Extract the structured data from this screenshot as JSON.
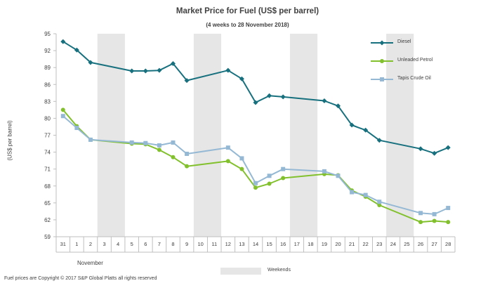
{
  "chart_data": {
    "type": "line",
    "title": "Market Price for Fuel (US$ per barrel)",
    "subtitle": "(4 weeks to 28 November 2018)",
    "ylabel": "(US$ per barrel)",
    "xlabel": "November",
    "ylim": [
      59,
      95
    ],
    "yticks": [
      "95",
      "92",
      "89",
      "86",
      "83",
      "80",
      "77",
      "74",
      "71",
      "68",
      "65",
      "62",
      "59"
    ],
    "categories": [
      "31",
      "1",
      "2",
      "3",
      "4",
      "5",
      "6",
      "7",
      "8",
      "9",
      "10",
      "11",
      "12",
      "13",
      "14",
      "15",
      "16",
      "17",
      "18",
      "19",
      "20",
      "21",
      "22",
      "23",
      "24",
      "25",
      "26",
      "27",
      "28"
    ],
    "weekends": [
      [
        "3",
        "4"
      ],
      [
        "10",
        "11"
      ],
      [
        "17",
        "18"
      ],
      [
        "24",
        "25"
      ]
    ],
    "weekend_label": "Weekends",
    "legend_position": "top-right",
    "grid": false,
    "series": [
      {
        "name": "Diesel",
        "color": "#17707e",
        "marker": "diamond",
        "points": [
          [
            "31",
            93.6
          ],
          [
            "1",
            92.1
          ],
          [
            "2",
            89.9
          ],
          [
            "5",
            88.4
          ],
          [
            "6",
            88.4
          ],
          [
            "7",
            88.5
          ],
          [
            "8",
            89.7
          ],
          [
            "9",
            86.7
          ],
          [
            "12",
            88.5
          ],
          [
            "13",
            87.0
          ],
          [
            "14",
            82.8
          ],
          [
            "15",
            84.0
          ],
          [
            "16",
            83.8
          ],
          [
            "19",
            83.1
          ],
          [
            "20",
            82.2
          ],
          [
            "21",
            78.8
          ],
          [
            "22",
            77.9
          ],
          [
            "23",
            76.1
          ],
          [
            "26",
            74.6
          ],
          [
            "27",
            73.8
          ],
          [
            "28",
            74.8
          ]
        ]
      },
      {
        "name": "Unleaded Petrol",
        "color": "#82c12d",
        "marker": "circle",
        "points": [
          [
            "31",
            81.5
          ],
          [
            "1",
            78.6
          ],
          [
            "2",
            76.2
          ],
          [
            "5",
            75.5
          ],
          [
            "6",
            75.4
          ],
          [
            "7",
            74.4
          ],
          [
            "8",
            73.1
          ],
          [
            "9",
            71.5
          ],
          [
            "12",
            72.4
          ],
          [
            "13",
            71.0
          ],
          [
            "14",
            67.7
          ],
          [
            "15",
            68.4
          ],
          [
            "16",
            69.4
          ],
          [
            "19",
            70.1
          ],
          [
            "20",
            69.9
          ],
          [
            "21",
            67.2
          ],
          [
            "22",
            66.1
          ],
          [
            "23",
            64.6
          ],
          [
            "26",
            61.6
          ],
          [
            "27",
            61.8
          ],
          [
            "28",
            61.6
          ]
        ]
      },
      {
        "name": "Tapis Crude Oil",
        "color": "#95b9d4",
        "marker": "square",
        "points": [
          [
            "31",
            80.4
          ],
          [
            "1",
            78.3
          ],
          [
            "2",
            76.2
          ],
          [
            "5",
            75.7
          ],
          [
            "6",
            75.6
          ],
          [
            "7",
            75.2
          ],
          [
            "8",
            75.7
          ],
          [
            "9",
            73.7
          ],
          [
            "12",
            74.8
          ],
          [
            "13",
            72.9
          ],
          [
            "14",
            68.5
          ],
          [
            "15",
            69.8
          ],
          [
            "16",
            71.0
          ],
          [
            "19",
            70.6
          ],
          [
            "20",
            69.8
          ],
          [
            "21",
            66.9
          ],
          [
            "22",
            66.4
          ],
          [
            "23",
            65.2
          ],
          [
            "26",
            63.2
          ],
          [
            "27",
            63.0
          ],
          [
            "28",
            64.1
          ]
        ]
      }
    ]
  },
  "footnote": "Fuel prices are Copyright © 2017 S&P Global Platts all rights reserved"
}
